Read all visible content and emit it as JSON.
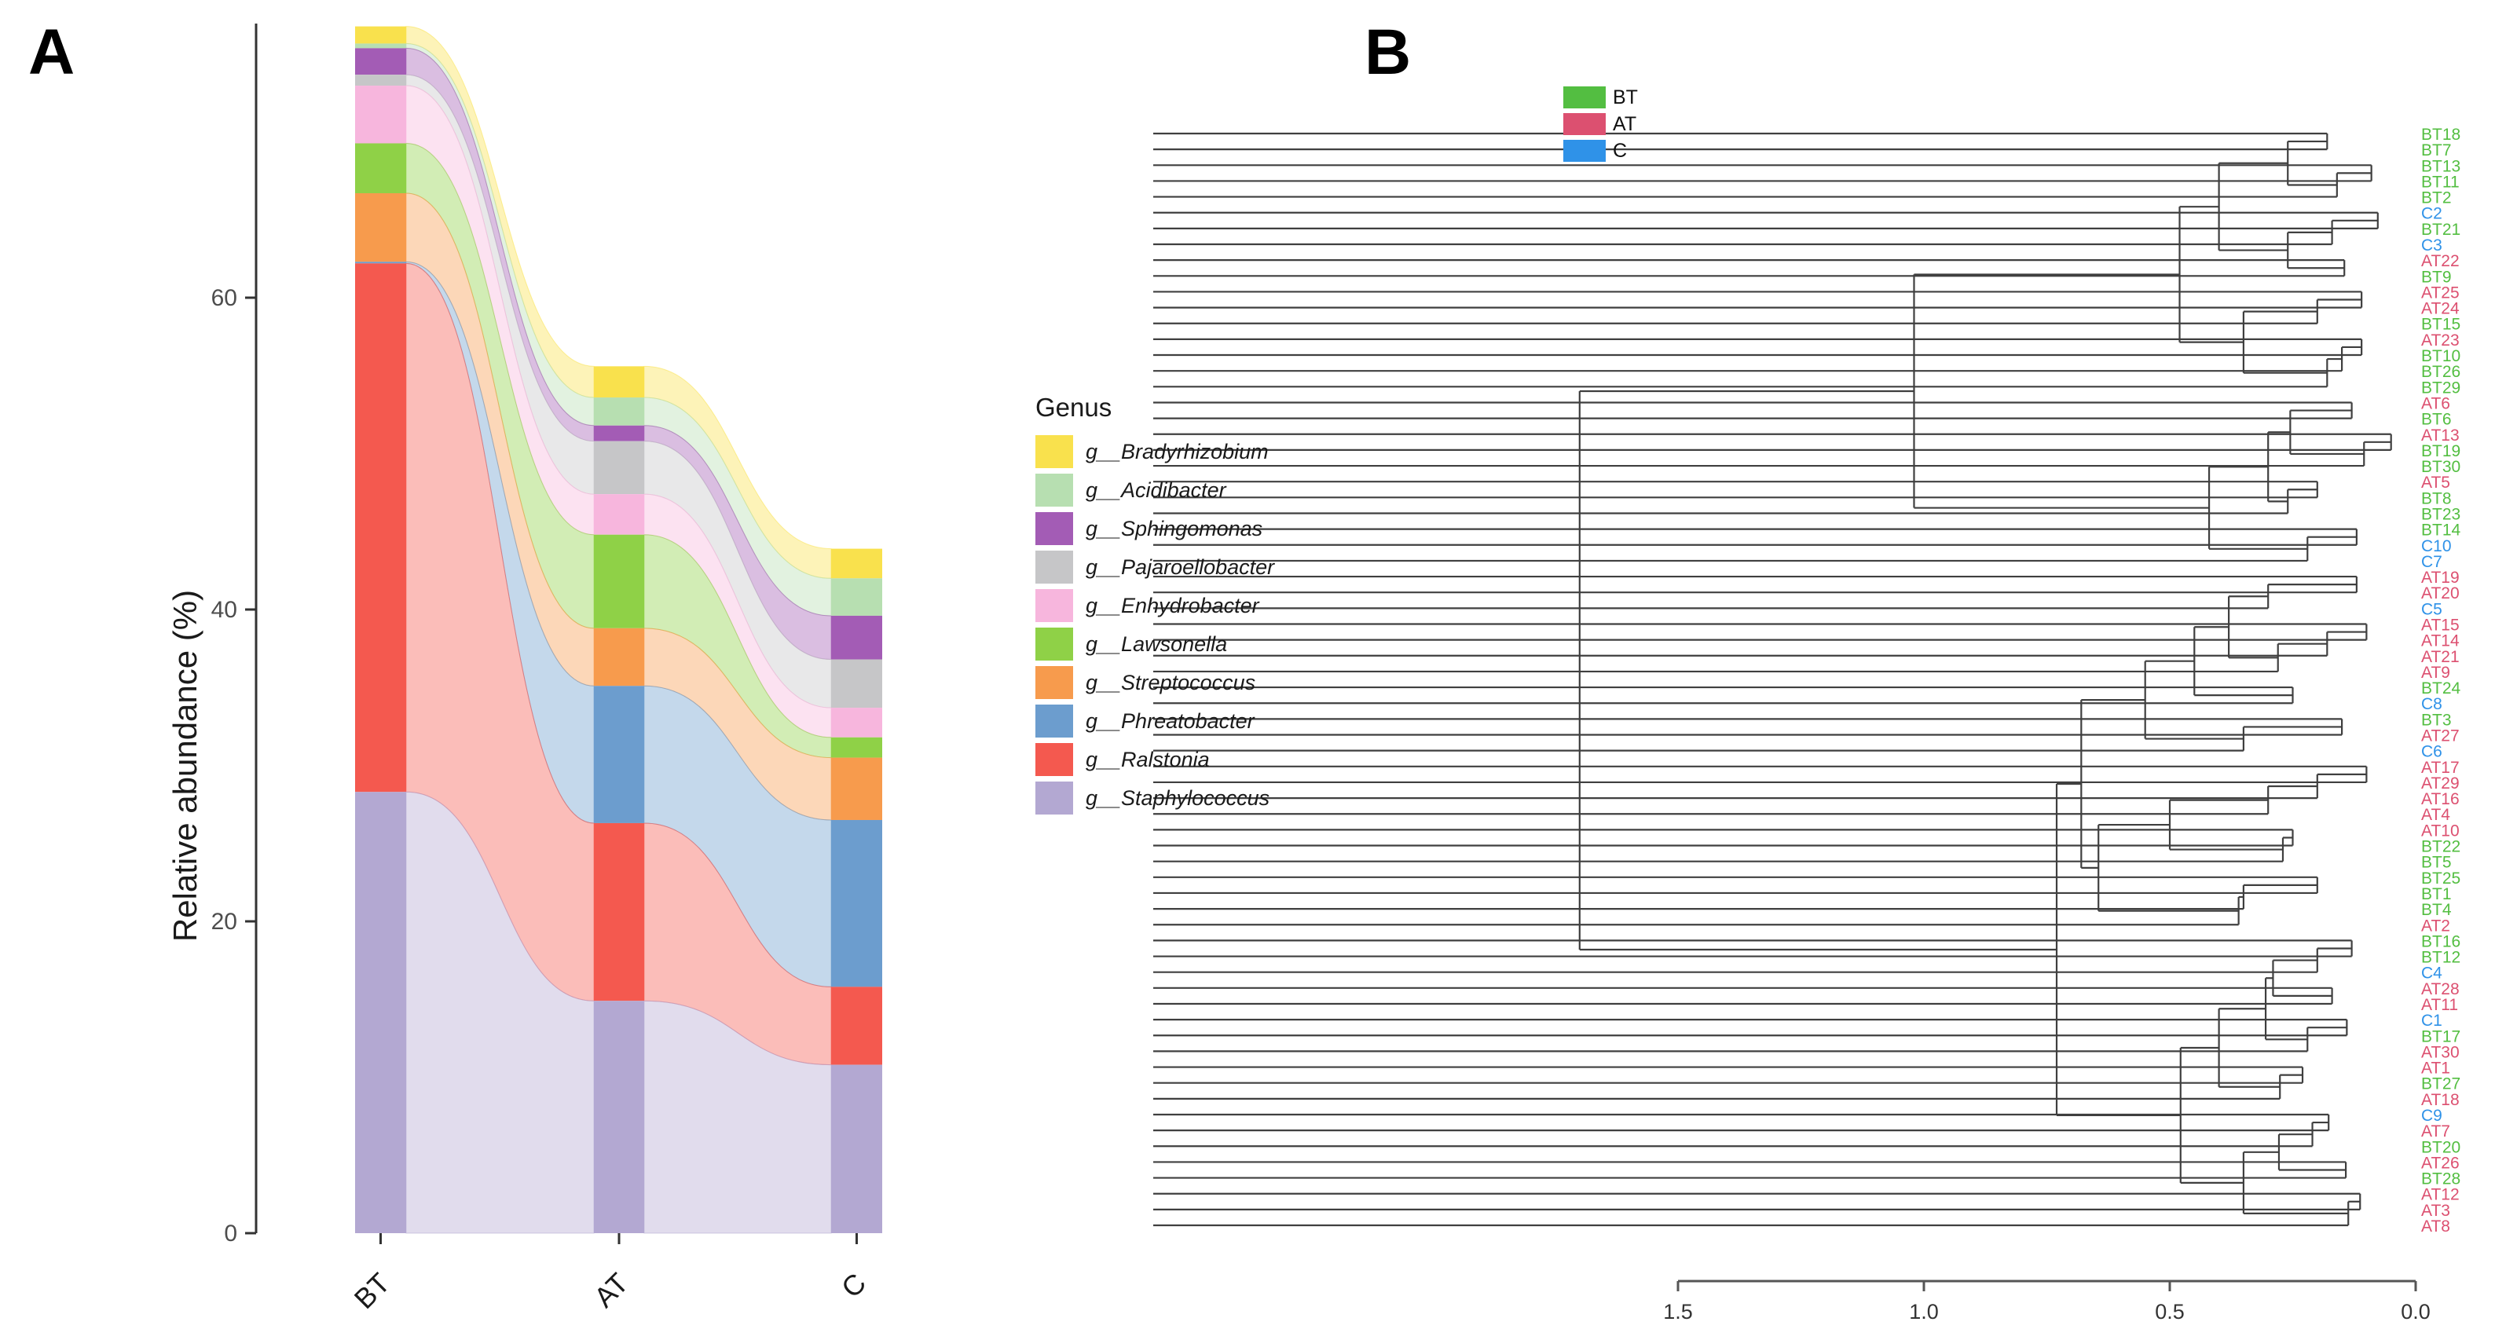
{
  "panels": {
    "a": {
      "label": "A"
    },
    "b": {
      "label": "B"
    }
  },
  "colors": {
    "background": "#ffffff",
    "axis_line": "#333333",
    "tick_text": "#4d4d4d",
    "dendrogram_line": "#3f3f3f"
  },
  "chart_data": [
    {
      "id": "alluvial-abundance",
      "type": "area",
      "subtype": "alluvial-stacked-bars",
      "title": "",
      "ylabel": "Relative abundance (%)",
      "categories": [
        "BT",
        "AT",
        "C"
      ],
      "yticks": [
        0,
        20,
        40,
        60
      ],
      "ylim": [
        0,
        80
      ],
      "grid": "off",
      "legend_title": "Genus",
      "legend_position": "right",
      "series": [
        {
          "name": "g__Bradyrhizobium",
          "color": "#F9E14D",
          "values": [
            1.1,
            2.0,
            1.9
          ]
        },
        {
          "name": "g__Acidibacter",
          "color": "#B7DFB1",
          "values": [
            0.3,
            1.8,
            2.4
          ]
        },
        {
          "name": "g__Sphingomonas",
          "color": "#A35CB5",
          "values": [
            1.7,
            1.0,
            2.8
          ]
        },
        {
          "name": "g__Pajaroellobacter",
          "color": "#C6C6C8",
          "values": [
            0.7,
            3.4,
            3.1
          ]
        },
        {
          "name": "g__Enhydrobacter",
          "color": "#F7B6DD",
          "values": [
            3.7,
            2.6,
            1.9
          ]
        },
        {
          "name": "g__Lawsonella",
          "color": "#8FD147",
          "values": [
            3.2,
            6.0,
            1.3
          ]
        },
        {
          "name": "g__Streptococcus",
          "color": "#F79B4D",
          "values": [
            4.4,
            3.7,
            4.0
          ]
        },
        {
          "name": "g__Phreatobacter",
          "color": "#6C9DCE",
          "values": [
            0.1,
            8.8,
            10.7
          ]
        },
        {
          "name": "g__Ralstonia",
          "color": "#F4594F",
          "values": [
            33.9,
            11.4,
            5.0
          ]
        },
        {
          "name": "g__Staphylococcus",
          "color": "#B3A8D2",
          "values": [
            28.3,
            14.9,
            10.8
          ]
        }
      ],
      "column_totals": [
        77.4,
        55.6,
        43.9
      ]
    },
    {
      "id": "hclust-dendrogram",
      "type": "dendrogram",
      "orientation": "right-to-left",
      "xticks": [
        "1.5",
        "1.0",
        "0.5",
        "0.0"
      ],
      "xlim": [
        1.75,
        0.0
      ],
      "grid": "off",
      "groups": [
        {
          "label": "BT",
          "color": "#53BE41"
        },
        {
          "label": "AT",
          "color": "#DC5070"
        },
        {
          "label": "C",
          "color": "#2F92E8"
        }
      ],
      "leaf_order": [
        "BT18",
        "BT7",
        "BT13",
        "BT11",
        "BT2",
        "C2",
        "BT21",
        "C3",
        "AT22",
        "BT9",
        "AT25",
        "AT24",
        "BT15",
        "AT23",
        "BT10",
        "BT26",
        "BT29",
        "AT6",
        "BT6",
        "AT13",
        "BT19",
        "BT30",
        "AT5",
        "BT8",
        "BT23",
        "BT14",
        "C10",
        "C7",
        "AT19",
        "AT20",
        "C5",
        "AT15",
        "AT14",
        "AT21",
        "AT9",
        "BT24",
        "C8",
        "BT3",
        "AT27",
        "C6",
        "AT17",
        "AT29",
        "AT16",
        "AT4",
        "AT10",
        "BT22",
        "BT5",
        "BT25",
        "BT1",
        "BT4",
        "AT2",
        "BT16",
        "BT12",
        "C4",
        "AT28",
        "AT11",
        "C1",
        "BT17",
        "AT30",
        "AT1",
        "BT27",
        "AT18",
        "C9",
        "AT7",
        "BT20",
        "AT26",
        "BT28",
        "AT12",
        "AT3",
        "AT8"
      ],
      "tree": [
        1.7,
        [
          1.02,
          [
            0.48,
            [
              0.4,
              [
                0.26,
                [
                  0.18,
                  "BT18",
                  "BT7"
                ],
                [
                  0.16,
                  [
                    0.09,
                    "BT13",
                    "BT11"
                  ],
                  "BT2"
                ]
              ],
              [
                0.26,
                [
                  0.17,
                  [
                    0.077,
                    "C2",
                    "BT21"
                  ],
                  "C3"
                ],
                [
                  0.145,
                  "AT22",
                  "BT9"
                ]
              ]
            ],
            [
              0.35,
              [
                0.2,
                [
                  0.11,
                  "AT25",
                  "AT24"
                ],
                "BT15"
              ],
              [
                0.18,
                [
                  0.15,
                  [
                    0.11,
                    "AT23",
                    "BT10"
                  ],
                  "BT26"
                ],
                "BT29"
              ]
            ]
          ],
          [
            0.42,
            [
              0.3,
              [
                0.255,
                [
                  0.13,
                  "AT6",
                  "BT6"
                ],
                [
                  0.105,
                  [
                    0.05,
                    "AT13",
                    "BT19"
                  ],
                  "BT30"
                ]
              ],
              [
                0.26,
                [
                  0.2,
                  "AT5",
                  "BT8"
                ],
                "BT23"
              ]
            ],
            [
              0.22,
              [
                0.12,
                "BT14",
                "C10"
              ],
              "C7"
            ]
          ]
        ],
        [
          0.73,
          [
            0.68,
            [
              0.55,
              [
                0.45,
                [
                  0.38,
                  [
                    0.3,
                    [
                      0.12,
                      "AT19",
                      "AT20"
                    ],
                    "C5"
                  ],
                  [
                    0.28,
                    [
                      0.18,
                      [
                        0.1,
                        "AT15",
                        "AT14"
                      ],
                      "AT21"
                    ],
                    "AT9"
                  ]
                ],
                [
                  0.25,
                  "BT24",
                  "C8"
                ]
              ],
              [
                0.35,
                [
                  0.15,
                  "BT3",
                  "AT27"
                ],
                "C6"
              ]
            ],
            [
              0.645,
              [
                0.5,
                [
                  0.3,
                  [
                    0.2,
                    [
                      0.1,
                      "AT17",
                      "AT29"
                    ],
                    "AT16"
                  ],
                  "AT4"
                ],
                [
                  0.27,
                  [
                    0.25,
                    "AT10",
                    "BT22"
                  ],
                  "BT5"
                ]
              ],
              [
                0.36,
                [
                  0.35,
                  [
                    0.2,
                    "BT25",
                    "BT1"
                  ],
                  "BT4"
                ],
                "AT2"
              ]
            ]
          ],
          [
            0.478,
            [
              0.4,
              [
                0.305,
                [
                  0.29,
                  [
                    0.2,
                    [
                      0.13,
                      "BT16",
                      "BT12"
                    ],
                    "C4"
                  ],
                  [
                    0.17,
                    "AT28",
                    "AT11"
                  ]
                ],
                [
                  0.22,
                  [
                    0.14,
                    "C1",
                    "BT17"
                  ],
                  "AT30"
                ]
              ],
              [
                0.276,
                [
                  0.23,
                  "AT1",
                  "BT27"
                ],
                "AT18"
              ]
            ],
            [
              0.35,
              [
                0.278,
                [
                  0.21,
                  [
                    0.177,
                    "C9",
                    "AT7"
                  ],
                  "BT20"
                ],
                [
                  0.142,
                  "AT26",
                  "BT28"
                ]
              ],
              [
                0.137,
                [
                  0.113,
                  "AT12",
                  "AT3"
                ],
                "AT8"
              ]
            ]
          ]
        ]
      ]
    }
  ]
}
